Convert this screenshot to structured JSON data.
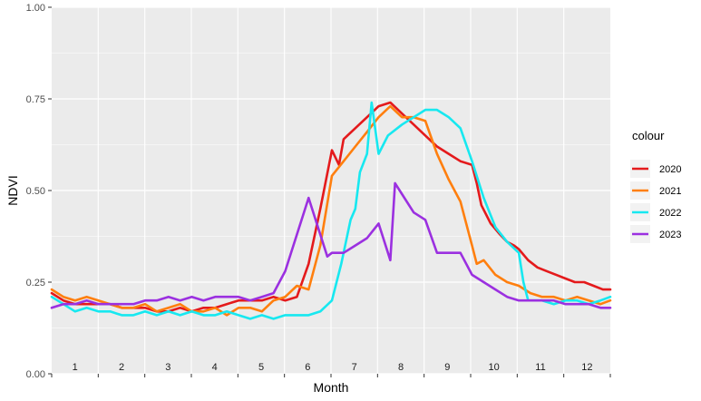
{
  "chart_data": {
    "type": "line",
    "xlabel": "Month",
    "ylabel": "NDVI",
    "xlim": [
      1,
      12.96
    ],
    "ylim": [
      0,
      1
    ],
    "yticks": [
      "0.00",
      "0.25",
      "0.50",
      "0.75",
      "1.00"
    ],
    "ytick_values": [
      0,
      0.25,
      0.5,
      0.75,
      1.0
    ],
    "month_labels": [
      "1",
      "2",
      "3",
      "4",
      "5",
      "6",
      "7",
      "8",
      "9",
      "10",
      "11",
      "12"
    ],
    "legend": {
      "title": "colour",
      "position": "right"
    },
    "grid": true,
    "series": [
      {
        "name": "2020",
        "color": "#e41a1c",
        "x": [
          1.0,
          1.25,
          1.5,
          1.75,
          2.0,
          2.25,
          2.5,
          2.75,
          3.0,
          3.25,
          3.5,
          3.75,
          4.0,
          4.25,
          4.5,
          4.75,
          5.0,
          5.25,
          5.5,
          5.75,
          6.0,
          6.25,
          6.5,
          6.75,
          7.0,
          7.15,
          7.25,
          7.5,
          7.75,
          8.0,
          8.25,
          8.5,
          8.75,
          9.0,
          9.25,
          9.5,
          9.75,
          10.0,
          10.1,
          10.2,
          10.4,
          10.6,
          10.75,
          10.9,
          11.0,
          11.2,
          11.4,
          11.6,
          11.8,
          12.0,
          12.2,
          12.4,
          12.6,
          12.8,
          12.96
        ],
        "y": [
          0.22,
          0.2,
          0.19,
          0.19,
          0.19,
          0.19,
          0.18,
          0.18,
          0.18,
          0.17,
          0.17,
          0.18,
          0.17,
          0.18,
          0.18,
          0.19,
          0.2,
          0.2,
          0.2,
          0.21,
          0.2,
          0.21,
          0.3,
          0.45,
          0.61,
          0.57,
          0.64,
          0.67,
          0.7,
          0.73,
          0.74,
          0.71,
          0.68,
          0.65,
          0.62,
          0.6,
          0.58,
          0.57,
          0.52,
          0.46,
          0.41,
          0.38,
          0.36,
          0.35,
          0.34,
          0.31,
          0.29,
          0.28,
          0.27,
          0.26,
          0.25,
          0.25,
          0.24,
          0.23,
          0.23
        ]
      },
      {
        "name": "2021",
        "color": "#ff7f0e",
        "x": [
          1.0,
          1.25,
          1.5,
          1.75,
          2.0,
          2.25,
          2.5,
          2.75,
          3.0,
          3.25,
          3.5,
          3.75,
          4.0,
          4.25,
          4.5,
          4.75,
          5.0,
          5.25,
          5.5,
          5.75,
          6.0,
          6.25,
          6.5,
          6.75,
          7.0,
          7.25,
          7.5,
          7.75,
          8.0,
          8.25,
          8.5,
          8.75,
          9.0,
          9.25,
          9.5,
          9.75,
          10.0,
          10.1,
          10.25,
          10.5,
          10.75,
          11.0,
          11.25,
          11.5,
          11.75,
          12.0,
          12.25,
          12.5,
          12.75,
          12.96
        ],
        "y": [
          0.23,
          0.21,
          0.2,
          0.21,
          0.2,
          0.19,
          0.18,
          0.18,
          0.19,
          0.17,
          0.18,
          0.19,
          0.17,
          0.17,
          0.18,
          0.16,
          0.18,
          0.18,
          0.17,
          0.2,
          0.21,
          0.24,
          0.23,
          0.35,
          0.54,
          0.58,
          0.62,
          0.66,
          0.7,
          0.73,
          0.7,
          0.7,
          0.69,
          0.6,
          0.53,
          0.47,
          0.35,
          0.3,
          0.31,
          0.27,
          0.25,
          0.24,
          0.22,
          0.21,
          0.21,
          0.2,
          0.21,
          0.2,
          0.19,
          0.2
        ]
      },
      {
        "name": "2022",
        "color": "#17e8f0",
        "x": [
          1.0,
          1.25,
          1.5,
          1.75,
          2.0,
          2.25,
          2.5,
          2.75,
          3.0,
          3.25,
          3.5,
          3.75,
          4.0,
          4.25,
          4.5,
          4.75,
          5.0,
          5.25,
          5.5,
          5.75,
          6.0,
          6.25,
          6.5,
          6.75,
          7.0,
          7.2,
          7.4,
          7.5,
          7.6,
          7.75,
          7.85,
          8.0,
          8.2,
          8.5,
          8.75,
          9.0,
          9.25,
          9.5,
          9.75,
          10.0,
          10.25,
          10.5,
          10.75,
          11.0,
          11.1,
          11.2,
          11.5,
          11.75,
          12.0,
          12.25,
          12.5,
          12.75,
          12.96
        ],
        "y": [
          0.21,
          0.19,
          0.17,
          0.18,
          0.17,
          0.17,
          0.16,
          0.16,
          0.17,
          0.16,
          0.17,
          0.16,
          0.17,
          0.16,
          0.16,
          0.17,
          0.16,
          0.15,
          0.16,
          0.15,
          0.16,
          0.16,
          0.16,
          0.17,
          0.2,
          0.3,
          0.42,
          0.45,
          0.55,
          0.6,
          0.74,
          0.6,
          0.65,
          0.68,
          0.7,
          0.72,
          0.72,
          0.7,
          0.67,
          0.58,
          0.48,
          0.4,
          0.36,
          0.33,
          0.25,
          0.2,
          0.2,
          0.19,
          0.2,
          0.2,
          0.19,
          0.2,
          0.21
        ]
      },
      {
        "name": "2023",
        "color": "#9b30e0",
        "x": [
          1.0,
          1.25,
          1.5,
          1.75,
          2.0,
          2.25,
          2.5,
          2.75,
          3.0,
          3.25,
          3.5,
          3.75,
          4.0,
          4.25,
          4.5,
          4.75,
          5.0,
          5.25,
          5.5,
          5.75,
          6.0,
          6.25,
          6.5,
          6.75,
          6.9,
          7.0,
          7.25,
          7.5,
          7.75,
          8.0,
          8.25,
          8.35,
          8.5,
          8.75,
          9.0,
          9.25,
          9.5,
          9.75,
          10.0,
          10.25,
          10.5,
          10.75,
          11.0,
          11.25,
          11.5,
          11.75,
          12.0,
          12.25,
          12.5,
          12.75,
          12.96
        ],
        "y": [
          0.18,
          0.19,
          0.19,
          0.2,
          0.19,
          0.19,
          0.19,
          0.19,
          0.2,
          0.2,
          0.21,
          0.2,
          0.21,
          0.2,
          0.21,
          0.21,
          0.21,
          0.2,
          0.21,
          0.22,
          0.28,
          0.38,
          0.48,
          0.38,
          0.32,
          0.33,
          0.33,
          0.35,
          0.37,
          0.41,
          0.31,
          0.52,
          0.49,
          0.44,
          0.42,
          0.33,
          0.33,
          0.33,
          0.27,
          0.25,
          0.23,
          0.21,
          0.2,
          0.2,
          0.2,
          0.2,
          0.19,
          0.19,
          0.19,
          0.18,
          0.18
        ]
      }
    ]
  }
}
